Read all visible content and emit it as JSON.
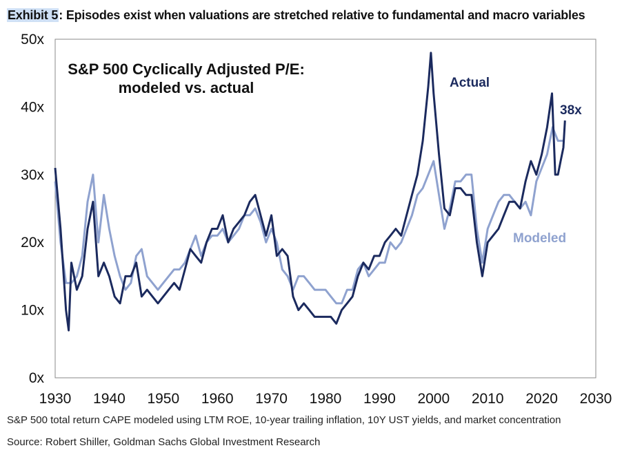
{
  "exhibit": {
    "tag": "Exhibit 5",
    "title": ": Episodes exist when valuations are stretched relative to fundamental and macro variables"
  },
  "footnotes": {
    "note": "S&P 500 total return CAPE modeled using LTM ROE, 10-year trailing inflation, 10Y UST yields, and market concentration",
    "source": "Source: Robert Shiller, Goldman Sachs Global Investment Research"
  },
  "chart_data": {
    "type": "line",
    "title_lines": [
      "S&P 500 Cyclically Adjusted P/E:",
      "modeled vs. actual"
    ],
    "xlabel": "",
    "ylabel": "",
    "xlim": [
      1930,
      2030
    ],
    "ylim": [
      0,
      50
    ],
    "x_ticks": [
      1930,
      1940,
      1950,
      1960,
      1970,
      1980,
      1990,
      2000,
      2010,
      2020,
      2030
    ],
    "y_ticks": [
      0,
      10,
      20,
      30,
      40,
      50
    ],
    "y_tick_labels": [
      "0x",
      "10x",
      "20x",
      "30x",
      "40x",
      "50x"
    ],
    "x_tick_labels": [
      "1930",
      "1940",
      "1950",
      "1960",
      "1970",
      "1980",
      "1990",
      "2000",
      "2010",
      "2020",
      "2030"
    ],
    "grid": false,
    "annotations": {
      "actual_label": "Actual",
      "modeled_label": "Modeled",
      "end_value_label": "38x"
    },
    "colors": {
      "actual": "#1b2a5e",
      "modeled": "#8fa2cf",
      "frame": "#888888"
    },
    "series": [
      {
        "name": "Actual",
        "x": [
          1930,
          1931,
          1932,
          1932.5,
          1933,
          1934,
          1935,
          1936,
          1937,
          1938,
          1939,
          1940,
          1941,
          1942,
          1943,
          1944,
          1945,
          1946,
          1947,
          1948,
          1949,
          1950,
          1951,
          1952,
          1953,
          1954,
          1955,
          1956,
          1957,
          1958,
          1959,
          1960,
          1961,
          1962,
          1963,
          1964,
          1965,
          1966,
          1967,
          1968,
          1969,
          1970,
          1971,
          1972,
          1973,
          1974,
          1975,
          1976,
          1977,
          1978,
          1979,
          1980,
          1981,
          1982,
          1983,
          1984,
          1985,
          1986,
          1987,
          1988,
          1989,
          1990,
          1991,
          1992,
          1993,
          1994,
          1995,
          1996,
          1997,
          1998,
          1999,
          1999.5,
          2000,
          2001,
          2002,
          2003,
          2004,
          2005,
          2006,
          2007,
          2008,
          2009,
          2010,
          2011,
          2012,
          2013,
          2014,
          2015,
          2016,
          2017,
          2018,
          2019,
          2020,
          2021,
          2021.9,
          2022.5,
          2023,
          2023.5,
          2024,
          2024.3
        ],
        "values": [
          31,
          22,
          10,
          7,
          17,
          13,
          15,
          22,
          26,
          15,
          17,
          15,
          12,
          11,
          15,
          15,
          17,
          12,
          13,
          12,
          11,
          12,
          13,
          14,
          13,
          16,
          19,
          18,
          17,
          20,
          22,
          22,
          24,
          20,
          22,
          23,
          24,
          26,
          27,
          24,
          21,
          24,
          18,
          19,
          18,
          12,
          10,
          11,
          10,
          9,
          9,
          9,
          9,
          8,
          10,
          11,
          12,
          15,
          17,
          16,
          18,
          18,
          20,
          21,
          22,
          21,
          24,
          27,
          30,
          35,
          43,
          48,
          42,
          33,
          25,
          24,
          28,
          28,
          27,
          27,
          20,
          15,
          20,
          21,
          22,
          24,
          26,
          26,
          25,
          29,
          32,
          30,
          33,
          37,
          42,
          30,
          30,
          32,
          34,
          38
        ]
      },
      {
        "name": "Modeled",
        "x": [
          1930,
          1931,
          1932,
          1933,
          1934,
          1935,
          1936,
          1937,
          1938,
          1939,
          1940,
          1941,
          1942,
          1943,
          1944,
          1945,
          1946,
          1947,
          1948,
          1949,
          1950,
          1951,
          1952,
          1953,
          1954,
          1955,
          1956,
          1957,
          1958,
          1959,
          1960,
          1961,
          1962,
          1963,
          1964,
          1965,
          1966,
          1967,
          1968,
          1969,
          1970,
          1971,
          1972,
          1973,
          1974,
          1975,
          1976,
          1977,
          1978,
          1979,
          1980,
          1981,
          1982,
          1983,
          1984,
          1985,
          1986,
          1987,
          1988,
          1989,
          1990,
          1991,
          1992,
          1993,
          1994,
          1995,
          1996,
          1997,
          1998,
          1999,
          2000,
          2001,
          2002,
          2003,
          2004,
          2005,
          2006,
          2007,
          2008,
          2009,
          2010,
          2011,
          2012,
          2013,
          2014,
          2015,
          2016,
          2017,
          2018,
          2019,
          2020,
          2021,
          2022,
          2023,
          2024
        ],
        "values": [
          29,
          20,
          14,
          14,
          15,
          18,
          26,
          30,
          20,
          27,
          22,
          18,
          15,
          13,
          14,
          18,
          19,
          15,
          14,
          13,
          14,
          15,
          16,
          16,
          17,
          19,
          21,
          18,
          20,
          21,
          21,
          22,
          20,
          21,
          22,
          24,
          24,
          25,
          23,
          20,
          22,
          20,
          16,
          15,
          13,
          15,
          15,
          14,
          13,
          13,
          13,
          12,
          11,
          11,
          13,
          13,
          16,
          17,
          15,
          16,
          17,
          17,
          20,
          19,
          20,
          22,
          24,
          27,
          28,
          30,
          32,
          27,
          22,
          25,
          29,
          29,
          30,
          30,
          22,
          17,
          22,
          24,
          26,
          27,
          27,
          26,
          25,
          26,
          24,
          29,
          31,
          33,
          37,
          35,
          35
        ]
      }
    ]
  }
}
